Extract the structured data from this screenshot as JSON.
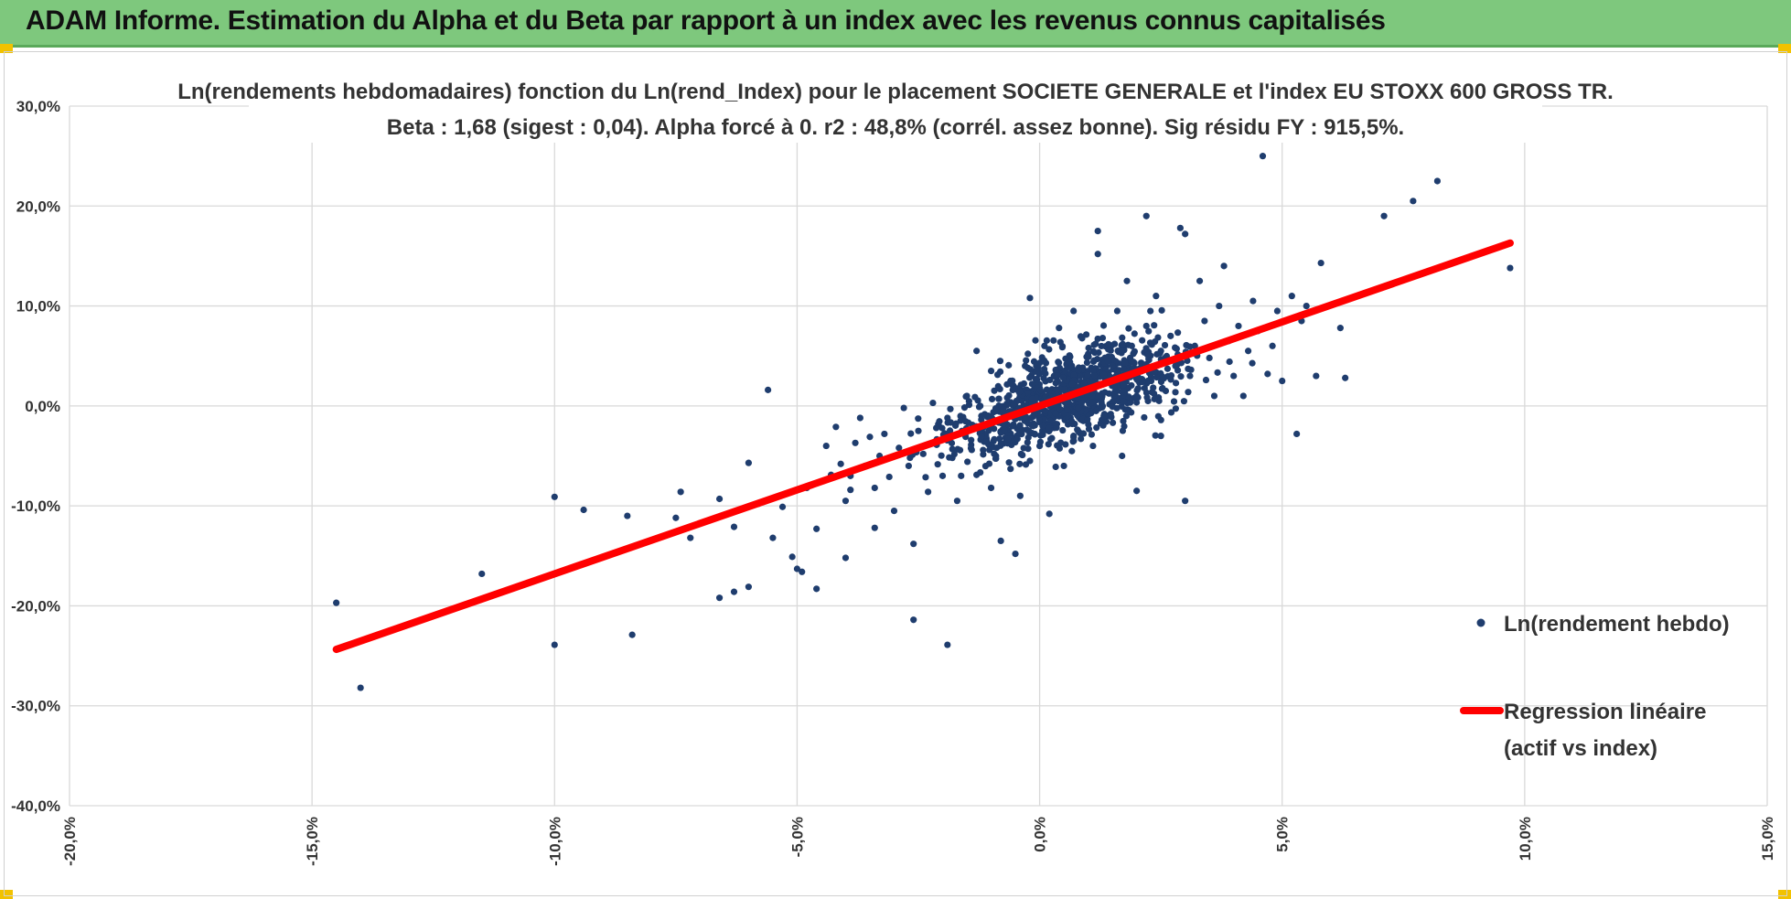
{
  "header": {
    "title": "ADAM Informe. Estimation du Alpha et du Beta par rapport à un index avec les revenus connus capitalisés"
  },
  "colors": {
    "header_bg": "#7ec87d",
    "points": "#1f3d6e",
    "regression": "#ff0000",
    "grid": "#d9d9d9"
  },
  "chart_data": {
    "type": "scatter",
    "title_line1": "Ln(rendements hebdomadaires) fonction du Ln(rend_Index) pour le placement SOCIETE GENERALE et l'index EU STOXX 600 GROSS TR.",
    "title_line2": "Beta : 1,68 (sigest : 0,04). Alpha forcé à 0. r2 : 48,8% (corrél. assez bonne). Sig résidu FY : 915,5%.",
    "xlim": [
      -0.2,
      0.15
    ],
    "ylim": [
      -0.4,
      0.3
    ],
    "x_ticks": [
      "-20,0%",
      "-15,0%",
      "-10,0%",
      "-5,0%",
      "0,0%",
      "5,0%",
      "10,0%",
      "15,0%"
    ],
    "x_tick_values": [
      -0.2,
      -0.15,
      -0.1,
      -0.05,
      0.0,
      0.05,
      0.1,
      0.15
    ],
    "y_ticks": [
      "30,0%",
      "20,0%",
      "10,0%",
      "0,0%",
      "-10,0%",
      "-20,0%",
      "-30,0%",
      "-40,0%"
    ],
    "y_tick_values": [
      0.3,
      0.2,
      0.1,
      0.0,
      -0.1,
      -0.2,
      -0.3,
      -0.4
    ],
    "grid": true,
    "legend_position": "right",
    "series": [
      {
        "name": "Ln(rendement hebdo)",
        "kind": "scatter",
        "points": [
          [
            -0.145,
            -0.197
          ],
          [
            -0.14,
            -0.282
          ],
          [
            -0.115,
            -0.168
          ],
          [
            -0.1,
            -0.091
          ],
          [
            -0.1,
            -0.239
          ],
          [
            -0.094,
            -0.104
          ],
          [
            -0.085,
            -0.11
          ],
          [
            -0.084,
            -0.229
          ],
          [
            -0.075,
            -0.112
          ],
          [
            -0.074,
            -0.086
          ],
          [
            -0.072,
            -0.132
          ],
          [
            -0.066,
            -0.093
          ],
          [
            -0.066,
            -0.192
          ],
          [
            -0.063,
            -0.186
          ],
          [
            -0.063,
            -0.121
          ],
          [
            -0.06,
            -0.057
          ],
          [
            -0.06,
            -0.181
          ],
          [
            -0.058,
            -0.098
          ],
          [
            -0.056,
            0.016
          ],
          [
            -0.055,
            -0.132
          ],
          [
            -0.053,
            -0.101
          ],
          [
            -0.051,
            -0.151
          ],
          [
            -0.05,
            -0.163
          ],
          [
            -0.049,
            -0.166
          ],
          [
            -0.048,
            -0.082
          ],
          [
            -0.046,
            -0.123
          ],
          [
            -0.046,
            -0.183
          ],
          [
            -0.044,
            -0.04
          ],
          [
            -0.043,
            -0.069
          ],
          [
            -0.042,
            -0.021
          ],
          [
            -0.041,
            -0.058
          ],
          [
            -0.04,
            -0.095
          ],
          [
            -0.04,
            -0.152
          ],
          [
            -0.039,
            -0.084
          ],
          [
            -0.039,
            -0.07
          ],
          [
            -0.038,
            -0.037
          ],
          [
            -0.037,
            -0.012
          ],
          [
            -0.036,
            -0.06
          ],
          [
            -0.035,
            -0.031
          ],
          [
            -0.034,
            -0.082
          ],
          [
            -0.034,
            -0.122
          ],
          [
            -0.033,
            -0.05
          ],
          [
            -0.032,
            -0.028
          ],
          [
            -0.031,
            -0.071
          ],
          [
            -0.03,
            -0.105
          ],
          [
            -0.029,
            -0.042
          ],
          [
            -0.028,
            -0.002
          ],
          [
            -0.027,
            -0.06
          ],
          [
            -0.026,
            -0.138
          ],
          [
            -0.026,
            -0.214
          ],
          [
            -0.025,
            -0.025
          ],
          [
            -0.024,
            -0.048
          ],
          [
            -0.023,
            -0.086
          ],
          [
            -0.022,
            0.003
          ],
          [
            -0.021,
            -0.035
          ],
          [
            -0.02,
            -0.07
          ],
          [
            -0.019,
            -0.012
          ],
          [
            -0.019,
            -0.239
          ],
          [
            -0.018,
            -0.052
          ],
          [
            -0.017,
            -0.095
          ],
          [
            -0.016,
            -0.025
          ],
          [
            -0.015,
            0.01
          ],
          [
            -0.014,
            -0.044
          ],
          [
            -0.013,
            -0.069
          ],
          [
            -0.013,
            0.055
          ],
          [
            -0.012,
            -0.01
          ],
          [
            -0.011,
            -0.032
          ],
          [
            -0.01,
            -0.082
          ],
          [
            -0.01,
            0.035
          ],
          [
            -0.009,
            -0.05
          ],
          [
            -0.008,
            -0.135
          ],
          [
            -0.008,
            -0.002
          ],
          [
            -0.007,
            -0.022
          ],
          [
            -0.006,
            0.025
          ],
          [
            -0.006,
            -0.063
          ],
          [
            -0.005,
            -0.148
          ],
          [
            -0.005,
            -0.035
          ],
          [
            -0.004,
            0.012
          ],
          [
            -0.004,
            -0.09
          ],
          [
            -0.003,
            0.04
          ],
          [
            -0.003,
            -0.015
          ],
          [
            -0.002,
            -0.055
          ],
          [
            -0.002,
            0.108
          ],
          [
            -0.001,
            0.005
          ],
          [
            -0.001,
            -0.028
          ],
          [
            0.0,
            0.018
          ],
          [
            0.0,
            -0.04
          ],
          [
            0.001,
            0.002
          ],
          [
            0.001,
            0.06
          ],
          [
            0.002,
            -0.01
          ],
          [
            0.002,
            -0.108
          ],
          [
            0.003,
            0.03
          ],
          [
            0.003,
            -0.022
          ],
          [
            0.004,
            0.012
          ],
          [
            0.004,
            0.078
          ],
          [
            0.005,
            -0.005
          ],
          [
            0.005,
            -0.06
          ],
          [
            0.006,
            0.045
          ],
          [
            0.006,
            0.02
          ],
          [
            0.007,
            -0.03
          ],
          [
            0.007,
            0.095
          ],
          [
            0.008,
            0.008
          ],
          [
            0.008,
            0.035
          ],
          [
            0.009,
            -0.015
          ],
          [
            0.01,
            0.052
          ],
          [
            0.01,
            0.022
          ],
          [
            0.011,
            -0.04
          ],
          [
            0.011,
            0.002
          ],
          [
            0.012,
            0.152
          ],
          [
            0.012,
            0.175
          ],
          [
            0.013,
            0.03
          ],
          [
            0.013,
            0.068
          ],
          [
            0.014,
            -0.01
          ],
          [
            0.015,
            0.045
          ],
          [
            0.016,
            0.095
          ],
          [
            0.016,
            0.015
          ],
          [
            0.017,
            -0.05
          ],
          [
            0.018,
            0.03
          ],
          [
            0.018,
            0.125
          ],
          [
            0.019,
            0.06
          ],
          [
            0.02,
            -0.085
          ],
          [
            0.02,
            0.01
          ],
          [
            0.021,
            0.042
          ],
          [
            0.022,
            0.08
          ],
          [
            0.022,
            0.19
          ],
          [
            0.023,
            0.025
          ],
          [
            0.024,
            0.11
          ],
          [
            0.025,
            0.055
          ],
          [
            0.025,
            -0.03
          ],
          [
            0.026,
            0.015
          ],
          [
            0.027,
            0.07
          ],
          [
            0.028,
            0.04
          ],
          [
            0.029,
            0.178
          ],
          [
            0.03,
            0.172
          ],
          [
            0.03,
            -0.095
          ],
          [
            0.031,
            0.03
          ],
          [
            0.032,
            0.06
          ],
          [
            0.033,
            0.125
          ],
          [
            0.034,
            0.085
          ],
          [
            0.035,
            0.048
          ],
          [
            0.036,
            0.01
          ],
          [
            0.037,
            0.1
          ],
          [
            0.038,
            0.14
          ],
          [
            0.039,
            0.065
          ],
          [
            0.04,
            0.03
          ],
          [
            0.041,
            0.08
          ],
          [
            0.042,
            0.01
          ],
          [
            0.043,
            0.055
          ],
          [
            0.044,
            0.105
          ],
          [
            0.045,
            0.075
          ],
          [
            0.046,
            0.25
          ],
          [
            0.047,
            0.032
          ],
          [
            0.048,
            0.06
          ],
          [
            0.049,
            0.095
          ],
          [
            0.05,
            0.025
          ],
          [
            0.052,
            0.11
          ],
          [
            0.053,
            -0.028
          ],
          [
            0.054,
            0.085
          ],
          [
            0.055,
            0.1
          ],
          [
            0.057,
            0.03
          ],
          [
            0.058,
            0.143
          ],
          [
            0.062,
            0.078
          ],
          [
            0.063,
            0.028
          ],
          [
            0.071,
            0.19
          ],
          [
            0.077,
            0.205
          ],
          [
            0.082,
            0.225
          ],
          [
            0.097,
            0.138
          ]
        ]
      },
      {
        "name": "Regression linéaire",
        "name_line2": "(actif vs index)",
        "kind": "line",
        "x": [
          -0.145,
          0.097
        ],
        "y": [
          -0.2436,
          0.163
        ]
      }
    ]
  }
}
